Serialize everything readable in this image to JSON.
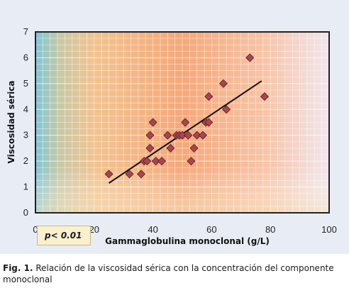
{
  "chart_data": {
    "type": "scatter",
    "xlabel": "Gammaglobulina monoclonal (g/L)",
    "ylabel": "Viscosidad sérica",
    "xlim": [
      0,
      100
    ],
    "ylim": [
      0,
      7
    ],
    "xticks": [
      "0",
      "20",
      "40",
      "60",
      "80",
      "100"
    ],
    "yticks": [
      "0",
      "1",
      "2",
      "3",
      "4",
      "5",
      "6",
      "7"
    ],
    "grid": true,
    "marker_color": "#a8454e",
    "trendline_color": "#111111",
    "points": [
      {
        "x": 25,
        "y": 1.5
      },
      {
        "x": 32,
        "y": 1.5
      },
      {
        "x": 36,
        "y": 1.5
      },
      {
        "x": 37,
        "y": 2.0
      },
      {
        "x": 38,
        "y": 2.0
      },
      {
        "x": 39,
        "y": 2.5
      },
      {
        "x": 39,
        "y": 3.0
      },
      {
        "x": 40,
        "y": 3.5
      },
      {
        "x": 41,
        "y": 2.0
      },
      {
        "x": 43,
        "y": 2.0
      },
      {
        "x": 45,
        "y": 3.0
      },
      {
        "x": 46,
        "y": 2.5
      },
      {
        "x": 48,
        "y": 3.0
      },
      {
        "x": 49,
        "y": 3.0
      },
      {
        "x": 50,
        "y": 3.0
      },
      {
        "x": 51,
        "y": 3.5
      },
      {
        "x": 52,
        "y": 3.0
      },
      {
        "x": 53,
        "y": 2.0
      },
      {
        "x": 54,
        "y": 2.5
      },
      {
        "x": 55,
        "y": 3.0
      },
      {
        "x": 57,
        "y": 3.0
      },
      {
        "x": 58,
        "y": 3.5
      },
      {
        "x": 59,
        "y": 3.5
      },
      {
        "x": 59,
        "y": 4.5
      },
      {
        "x": 64,
        "y": 5.0
      },
      {
        "x": 65,
        "y": 4.0
      },
      {
        "x": 73,
        "y": 6.0
      },
      {
        "x": 78,
        "y": 4.5
      }
    ],
    "trendline": {
      "x": [
        25,
        77
      ],
      "y": [
        1.15,
        5.1
      ]
    },
    "annotation": "p< 0.01"
  },
  "caption": {
    "label": "Fig. 1.",
    "text": "Relación de la viscosidad sérica con la concentración del componente monoclonal"
  }
}
